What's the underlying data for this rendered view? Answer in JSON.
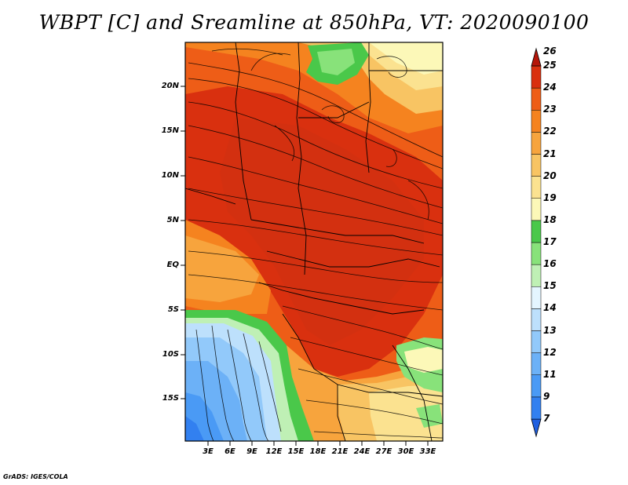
{
  "title": "WBPT [C] and Sreamline at 850hPa, VT: 2020090100",
  "footer": "GrADS: IGES/COLA",
  "map": {
    "lat_labels": [
      "20N",
      "15N",
      "10N",
      "5N",
      "EQ",
      "5S",
      "10S",
      "15S"
    ],
    "lon_labels": [
      "3E",
      "6E",
      "9E",
      "12E",
      "15E",
      "18E",
      "21E",
      "24E",
      "27E",
      "30E",
      "33E"
    ]
  },
  "colorbar": {
    "levels": [
      "7",
      "9",
      "11",
      "12",
      "13",
      "14",
      "15",
      "16",
      "17",
      "18",
      "19",
      "20",
      "21",
      "22",
      "23",
      "24",
      "25",
      "26"
    ],
    "colors": [
      "#1f5fe0",
      "#3280f0",
      "#4a9af5",
      "#6cb1f7",
      "#92c9fa",
      "#bde0fc",
      "#e4f5ff",
      "#bff0b5",
      "#88e27a",
      "#4ac84a",
      "#fcf8b8",
      "#fbe290",
      "#f8c463",
      "#f7a43d",
      "#f5831f",
      "#ee5d17",
      "#d9300f",
      "#b51509"
    ]
  }
}
